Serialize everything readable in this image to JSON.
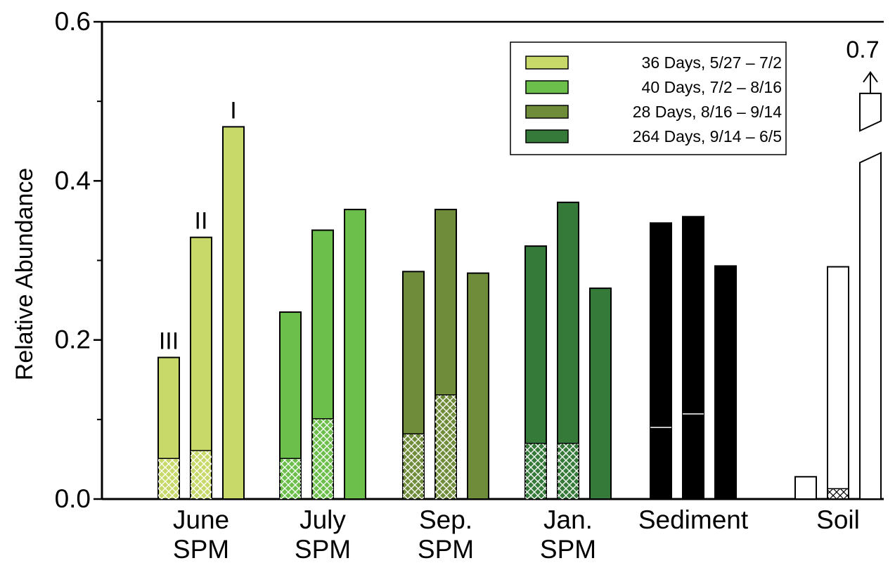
{
  "chart_data": {
    "type": "bar",
    "title": "",
    "xlabel": "",
    "ylabel": "Relative Abundance",
    "ylim": [
      0,
      0.6
    ],
    "yticks": [
      "0.0",
      "0.2",
      "0.4",
      "0.6"
    ],
    "grid": false,
    "legend_position": "top-right",
    "colors": {
      "june": "#c8d96a",
      "july": "#6bbf4a",
      "sep": "#6e8c3a",
      "jan": "#367a3a",
      "sediment": "#000000",
      "soil": "#ffffff",
      "hatch_light": "#ffffff",
      "hatch_dark": "#000000"
    },
    "legend": [
      {
        "label": "36 Days, 5/27 – 7/2",
        "color": "#c8d96a"
      },
      {
        "label": "40 Days, 7/2 – 8/16",
        "color": "#6bbf4a"
      },
      {
        "label": "28 Days, 8/16 – 9/14",
        "color": "#6e8c3a"
      },
      {
        "label": "264 Days, 9/14 – 6/5",
        "color": "#367a3a"
      }
    ],
    "series_labels": [
      "III",
      "II",
      "I"
    ],
    "groups": [
      {
        "name": "June\nSPM",
        "label_lines": [
          "June",
          "SPM"
        ],
        "color_key": "june",
        "bars": [
          {
            "total": 0.178,
            "hatched": 0.051
          },
          {
            "total": 0.329,
            "hatched": 0.061
          },
          {
            "total": 0.468,
            "hatched": 0.0
          }
        ]
      },
      {
        "name": "July\nSPM",
        "label_lines": [
          "July",
          "SPM"
        ],
        "color_key": "july",
        "bars": [
          {
            "total": 0.235,
            "hatched": 0.051
          },
          {
            "total": 0.338,
            "hatched": 0.101
          },
          {
            "total": 0.364,
            "hatched": 0.0
          }
        ]
      },
      {
        "name": "Sep.\nSPM",
        "label_lines": [
          "Sep.",
          "SPM"
        ],
        "color_key": "sep",
        "bars": [
          {
            "total": 0.286,
            "hatched": 0.082
          },
          {
            "total": 0.364,
            "hatched": 0.131
          },
          {
            "total": 0.284,
            "hatched": 0.0
          }
        ]
      },
      {
        "name": "Jan.\nSPM",
        "label_lines": [
          "Jan.",
          "SPM"
        ],
        "color_key": "jan",
        "bars": [
          {
            "total": 0.318,
            "hatched": 0.07
          },
          {
            "total": 0.373,
            "hatched": 0.07
          },
          {
            "total": 0.265,
            "hatched": 0.0
          }
        ]
      },
      {
        "name": "Sediment",
        "label_lines": [
          "Sediment"
        ],
        "color_key": "sediment",
        "bars": [
          {
            "total": 0.347,
            "hatched": 0.09
          },
          {
            "total": 0.355,
            "hatched": 0.107
          },
          {
            "total": 0.293,
            "hatched": 0.0
          }
        ]
      },
      {
        "name": "Soil",
        "label_lines": [
          "Soil"
        ],
        "color_key": "soil",
        "bars": [
          {
            "total": 0.028,
            "hatched": 0.0
          },
          {
            "total": 0.292,
            "hatched": 0.013
          },
          {
            "total": 0.7,
            "hatched": 0.0,
            "broken": true
          }
        ]
      }
    ],
    "overflow_label": "0.7"
  }
}
